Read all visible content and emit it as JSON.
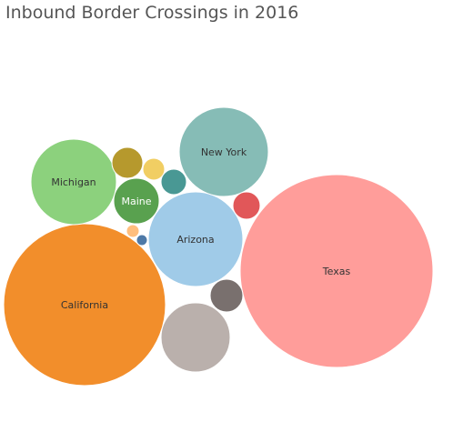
{
  "chart_data": {
    "type": "bubble",
    "title": "Inbound Border Crossings in 2016",
    "bubbles": [
      {
        "label": "Texas",
        "color": "#ff9d9a",
        "label_color": "#333333"
      },
      {
        "label": "California",
        "color": "#f28e2b",
        "label_color": "#333333"
      },
      {
        "label": "Arizona",
        "color": "#a0cbe8",
        "label_color": "#333333"
      },
      {
        "label": "New York",
        "color": "#86bcb6",
        "label_color": "#333333"
      },
      {
        "label": "Michigan",
        "color": "#8cd17d",
        "label_color": "#333333"
      },
      {
        "label": "Maine",
        "color": "#59a14f",
        "label_color": "#ffffff"
      },
      {
        "label": "",
        "color": "#bab0ac"
      },
      {
        "label": "",
        "color": "#79706e"
      },
      {
        "label": "",
        "color": "#e15759"
      },
      {
        "label": "",
        "color": "#b6992d"
      },
      {
        "label": "",
        "color": "#f1ce63"
      },
      {
        "label": "",
        "color": "#499894"
      },
      {
        "label": "",
        "color": "#ffbe7d"
      },
      {
        "label": "",
        "color": "#4e79a7"
      }
    ]
  }
}
